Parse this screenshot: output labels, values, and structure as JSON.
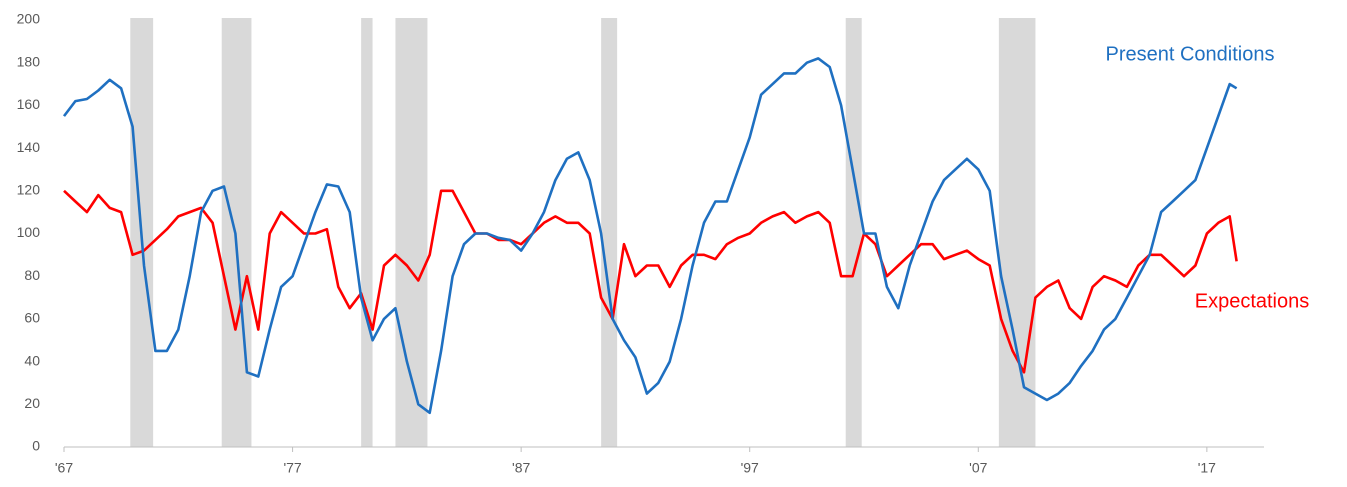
{
  "chart_data": {
    "type": "line",
    "x": [
      1967,
      1967.5,
      1968,
      1968.5,
      1969,
      1969.5,
      1970,
      1970.5,
      1971,
      1971.5,
      1972,
      1972.5,
      1973,
      1973.5,
      1974,
      1974.5,
      1975,
      1975.5,
      1976,
      1976.5,
      1977,
      1977.5,
      1978,
      1978.5,
      1979,
      1979.5,
      1980,
      1980.5,
      1981,
      1981.5,
      1982,
      1982.5,
      1983,
      1983.5,
      1984,
      1984.5,
      1985,
      1985.5,
      1986,
      1986.5,
      1987,
      1987.5,
      1988,
      1988.5,
      1989,
      1989.5,
      1990,
      1990.5,
      1991,
      1991.5,
      1992,
      1992.5,
      1993,
      1993.5,
      1994,
      1994.5,
      1995,
      1995.5,
      1996,
      1996.5,
      1997,
      1997.5,
      1998,
      1998.5,
      1999,
      1999.5,
      2000,
      2000.5,
      2001,
      2001.5,
      2002,
      2002.5,
      2003,
      2003.5,
      2004,
      2004.5,
      2005,
      2005.5,
      2006,
      2006.5,
      2007,
      2007.5,
      2008,
      2008.5,
      2009,
      2009.5,
      2010,
      2010.5,
      2011,
      2011.5,
      2012,
      2012.5,
      2013,
      2013.5,
      2014,
      2014.5,
      2015,
      2015.5,
      2016,
      2016.5,
      2017,
      2017.5,
      2018,
      2018.3
    ],
    "series": [
      {
        "name": "Present Conditions",
        "color": "#1f70c1",
        "values": [
          155,
          162,
          163,
          167,
          172,
          168,
          150,
          85,
          45,
          45,
          55,
          80,
          110,
          120,
          122,
          100,
          35,
          33,
          55,
          75,
          80,
          95,
          110,
          123,
          122,
          110,
          70,
          50,
          60,
          65,
          40,
          20,
          16,
          45,
          80,
          95,
          100,
          100,
          98,
          97,
          92,
          100,
          110,
          125,
          135,
          138,
          125,
          100,
          60,
          50,
          42,
          25,
          30,
          40,
          60,
          85,
          105,
          115,
          115,
          130,
          145,
          165,
          170,
          175,
          175,
          180,
          182,
          178,
          160,
          130,
          100,
          100,
          75,
          65,
          85,
          100,
          115,
          125,
          130,
          135,
          130,
          120,
          80,
          55,
          28,
          25,
          22,
          25,
          30,
          38,
          45,
          55,
          60,
          70,
          80,
          90,
          110,
          115,
          120,
          125,
          140,
          155,
          170,
          168
        ]
      },
      {
        "name": "Expectations",
        "color": "#ff0000",
        "values": [
          120,
          115,
          110,
          118,
          112,
          110,
          90,
          92,
          97,
          102,
          108,
          110,
          112,
          105,
          80,
          55,
          80,
          55,
          100,
          110,
          105,
          100,
          100,
          102,
          75,
          65,
          72,
          55,
          85,
          90,
          85,
          78,
          90,
          120,
          120,
          110,
          100,
          100,
          97,
          97,
          95,
          100,
          105,
          108,
          105,
          105,
          100,
          70,
          60,
          95,
          80,
          85,
          85,
          75,
          85,
          90,
          90,
          88,
          95,
          98,
          100,
          105,
          108,
          110,
          105,
          108,
          110,
          105,
          80,
          80,
          100,
          95,
          80,
          85,
          90,
          95,
          95,
          88,
          90,
          92,
          88,
          85,
          60,
          45,
          35,
          70,
          75,
          78,
          65,
          60,
          75,
          80,
          78,
          75,
          85,
          90,
          90,
          85,
          80,
          85,
          100,
          105,
          108,
          87
        ]
      }
    ],
    "recessions": [
      [
        1969.9,
        1970.9
      ],
      [
        1973.9,
        1975.2
      ],
      [
        1980.0,
        1980.5
      ],
      [
        1981.5,
        1982.9
      ],
      [
        1990.5,
        1991.2
      ],
      [
        2001.2,
        2001.9
      ],
      [
        2007.9,
        2009.5
      ]
    ],
    "xlim": [
      1967,
      2019.5
    ],
    "xticks": [
      {
        "value": 1967,
        "label": "'67"
      },
      {
        "value": 1977,
        "label": "'77"
      },
      {
        "value": 1987,
        "label": "'87"
      },
      {
        "value": 1997,
        "label": "'97"
      },
      {
        "value": 2007,
        "label": "'07"
      },
      {
        "value": 2017,
        "label": "'17"
      }
    ],
    "ylim": [
      0,
      200
    ],
    "yticks": [
      0,
      20,
      40,
      60,
      80,
      100,
      120,
      140,
      160,
      180,
      200
    ],
    "grid": false
  }
}
